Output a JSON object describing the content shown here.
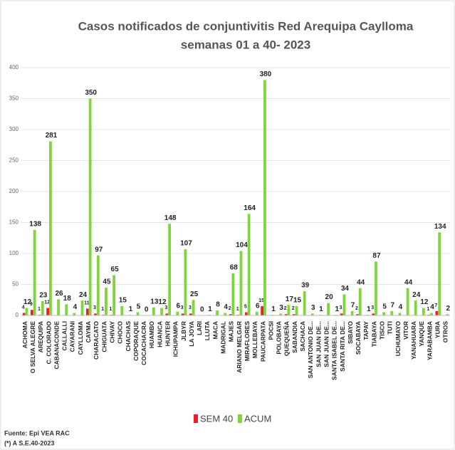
{
  "chart_data": {
    "type": "bar",
    "title": "Casos notificados de conjuntivitis Red Arequipa Caylloma",
    "subtitle": "semanas 01 a 40- 2023",
    "categories": [
      "ACHOMA",
      "O SELVA ALEGRE",
      "AREQUIPA",
      "C. COLORADO",
      "CABANACONDE",
      "CALLALLI",
      "CAYARANI",
      "CAYLLOMA",
      "CAYMA",
      "CHARACATO",
      "CHIGUATA",
      "CHIVAY",
      "CHOCO",
      "CHACHAS",
      "COPORAQUE",
      "COCACHACRA",
      "HUAMBO",
      "HUANCA",
      "HUNTER",
      "ICHUPAMPA",
      "JLBYR",
      "LA JOYA",
      "LARI",
      "LLUTA",
      "MACA",
      "MADRIGAL",
      "MAJES",
      "ARIANO MELGAR",
      "MIRAFLORES",
      "MOLLEBAYA",
      "PAUCARPATA",
      "POCSI",
      "POLOBAYA",
      "QUEQUEÑA",
      "SABANDIA",
      "SACHACA",
      "SAN ANTONIO DE...",
      "SAN JUAN DE...",
      "SAN JUAN DE...",
      "SANTA ISABEL DE...",
      "SANTA RITA DE...",
      "SIBAYO",
      "SOCABAYA",
      "TAPAY",
      "TIABAYA",
      "TISCO",
      "TUTI",
      "UCHUMAYO",
      "VITOR",
      "YANAHUARA",
      "YANQUE",
      "YARABAMBA",
      "YURA",
      "OTROS"
    ],
    "series": [
      {
        "name": "SEM 40",
        "color": "#e8202a",
        "values": [
          4,
          9,
          1,
          12,
          null,
          null,
          null,
          null,
          11,
          3,
          1,
          1,
          null,
          null,
          null,
          null,
          null,
          null,
          3,
          null,
          3,
          3,
          null,
          null,
          null,
          null,
          2,
          1,
          5,
          null,
          15,
          null,
          null,
          2,
          2,
          null,
          null,
          null,
          null,
          null,
          3,
          null,
          2,
          null,
          3,
          null,
          null,
          null,
          null,
          null,
          null,
          1,
          7,
          null
        ]
      },
      {
        "name": "ACUM",
        "color": "#7ed63c",
        "values": [
          12,
          138,
          23,
          281,
          26,
          18,
          4,
          24,
          350,
          97,
          45,
          65,
          15,
          1,
          5,
          0,
          13,
          12,
          148,
          6,
          107,
          25,
          0,
          1,
          8,
          4,
          68,
          104,
          164,
          6,
          380,
          1,
          3,
          17,
          15,
          39,
          3,
          1,
          20,
          1,
          34,
          7,
          44,
          1,
          87,
          5,
          7,
          4,
          44,
          24,
          12,
          4,
          134,
          2
        ]
      }
    ],
    "ylim": [
      0,
      400
    ],
    "yticks": [
      0,
      50,
      100,
      150,
      200,
      250,
      300,
      350,
      400
    ],
    "grid": true,
    "source": "Fuente: Epi VEA RAC",
    "note": "(*) A S.E.40-2023"
  }
}
